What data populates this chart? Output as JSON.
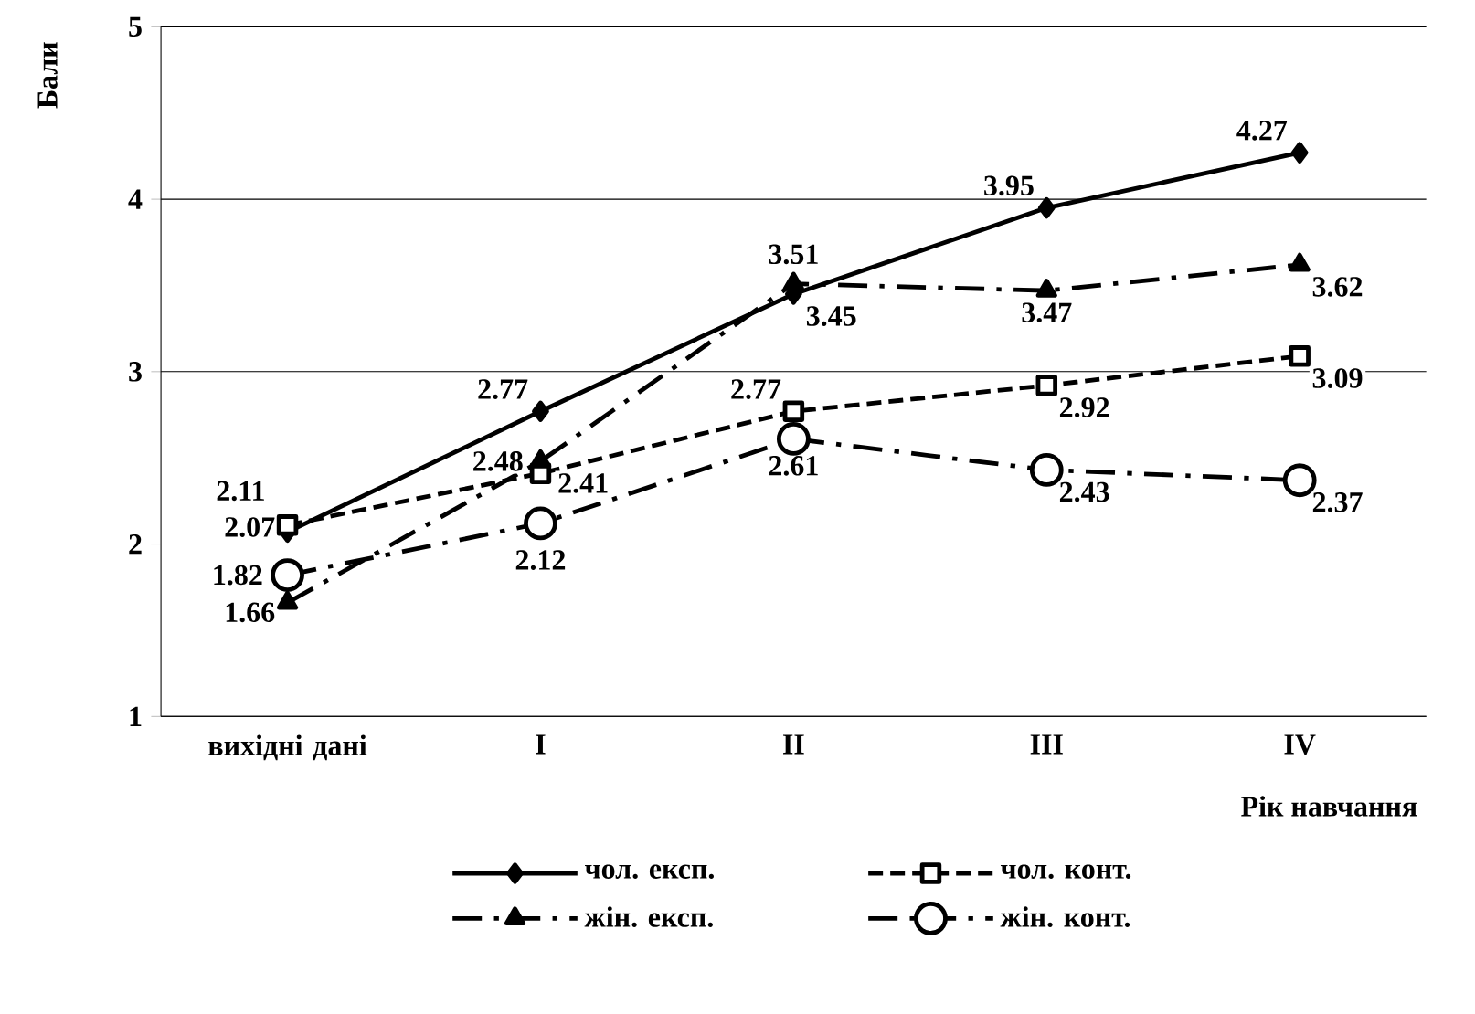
{
  "chart_data": {
    "type": "line",
    "xlabel": "Рік навчання",
    "ylabel": "Бали",
    "categories": [
      "вихідні дані",
      "I",
      "II",
      "III",
      "IV"
    ],
    "series": [
      {
        "name": "чол. експ.",
        "color": "#000000",
        "marker": "diamond",
        "line_style": "solid",
        "values": [
          2.07,
          2.77,
          3.45,
          3.95,
          4.27
        ]
      },
      {
        "name": "чол. конт.",
        "color": "#000000",
        "marker": "square",
        "line_style": "dashed",
        "values": [
          2.11,
          2.41,
          2.77,
          2.92,
          3.09
        ]
      },
      {
        "name": "жін. експ.",
        "color": "#000000",
        "marker": "triangle",
        "line_style": "dashdot",
        "values": [
          1.66,
          2.48,
          3.51,
          3.47,
          3.62
        ]
      },
      {
        "name": "жін. конт.",
        "color": "#000000",
        "marker": "circle",
        "line_style": "dashdot",
        "values": [
          1.82,
          2.12,
          2.61,
          2.43,
          2.37
        ]
      }
    ],
    "ylim": [
      1,
      5
    ],
    "yticks": [
      1,
      2,
      3,
      4,
      5
    ],
    "grid": "y",
    "legend": "bottom",
    "data_labels": true
  }
}
